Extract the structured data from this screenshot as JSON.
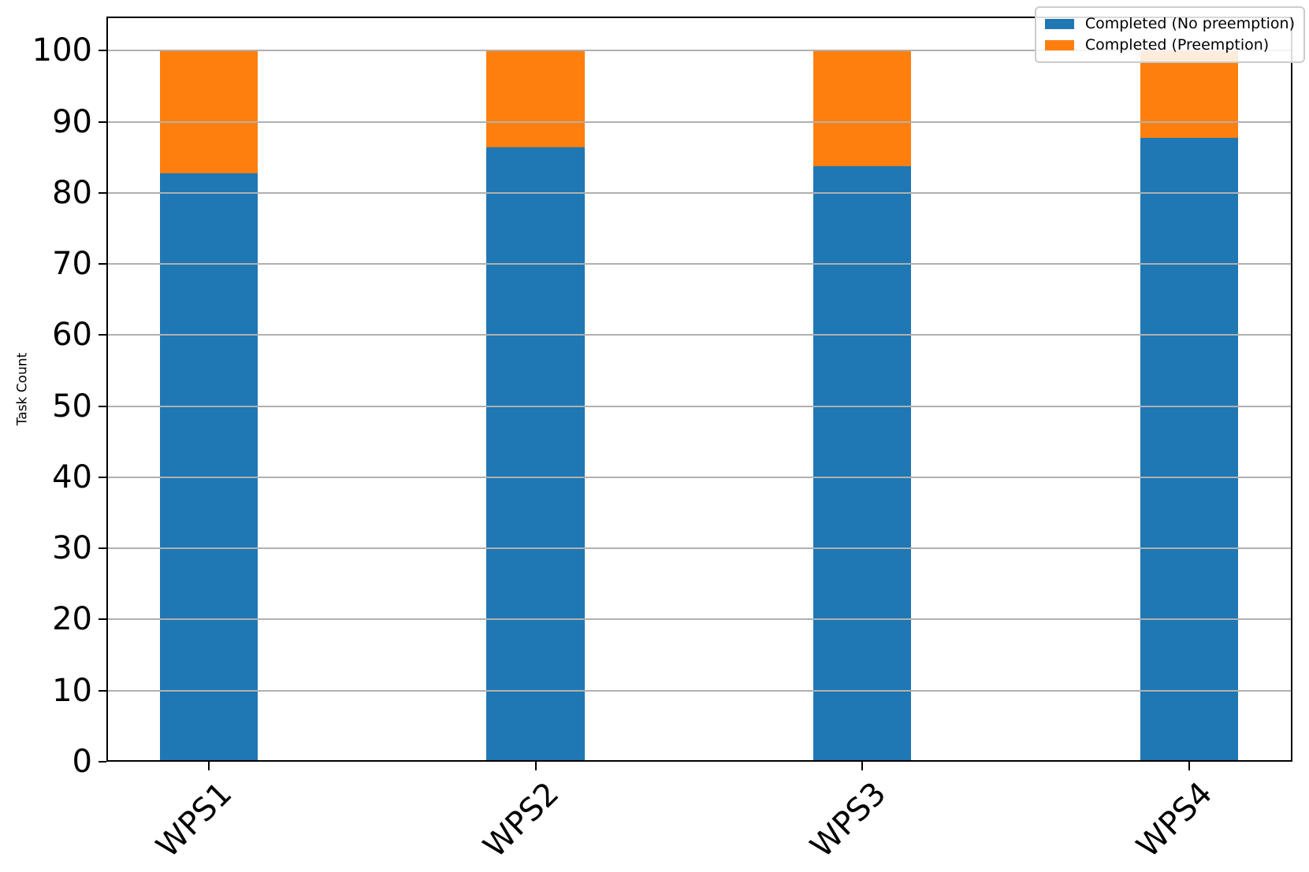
{
  "chart_data": {
    "type": "bar",
    "stacked": true,
    "title": "",
    "xlabel": "",
    "ylabel": "Task Count",
    "categories": [
      "WPS1",
      "WPS2",
      "WPS3",
      "WPS4"
    ],
    "series": [
      {
        "name": "Completed (No preemption)",
        "color": "#1f77b4",
        "values": [
          82.7,
          86.4,
          83.7,
          87.7
        ]
      },
      {
        "name": "Completed (Preemption)",
        "color": "#ff7f0e",
        "values": [
          17.3,
          13.6,
          16.3,
          12.3
        ]
      }
    ],
    "stack_totals": [
      100,
      100,
      100,
      100
    ],
    "yticks": [
      0,
      10,
      20,
      30,
      40,
      50,
      60,
      70,
      80,
      90,
      100
    ],
    "ylim": [
      0,
      104.8
    ],
    "xlim": [
      -0.313,
      3.316
    ],
    "bar_width": 0.3,
    "grid": "horizontal",
    "grid_color": "#b0b0b0",
    "axis_color": "#000000",
    "background_color": "#ffffff",
    "x_tick_rotation": 45,
    "legend": {
      "position": "upper right",
      "items": [
        "Completed (No preemption)",
        "Completed (Preemption)"
      ]
    }
  }
}
